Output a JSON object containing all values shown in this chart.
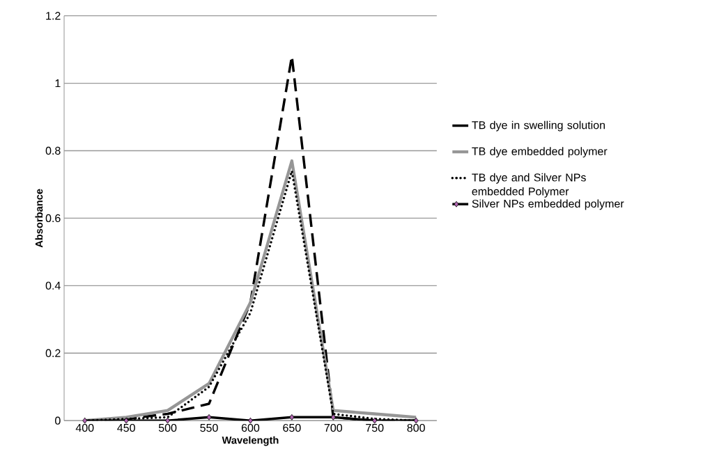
{
  "chart_data": {
    "type": "line",
    "xlabel": "Wavelength",
    "ylabel": "Absorbance",
    "categories": [
      "400",
      "450",
      "500",
      "550",
      "600",
      "650",
      "700",
      "750",
      "800"
    ],
    "series": [
      {
        "name": "TB dye in swelling solution",
        "color": "#000000",
        "line_style": "dashed",
        "marker": "none",
        "values": [
          0,
          0.005,
          0.02,
          0.05,
          0.35,
          1.08,
          0.01,
          0,
          0
        ]
      },
      {
        "name": "TB dye embedded polymer",
        "color": "#969696",
        "line_style": "solid",
        "marker": "none",
        "values": [
          0,
          0.01,
          0.03,
          0.11,
          0.35,
          0.77,
          0.03,
          0.02,
          0.01
        ]
      },
      {
        "name": "TB dye and Silver NPs embedded Polymer",
        "color": "#000000",
        "line_style": "dotted",
        "marker": "none",
        "values": [
          0,
          0.005,
          0.01,
          0.1,
          0.32,
          0.74,
          0.02,
          0.005,
          0
        ]
      },
      {
        "name": "Silver NPs embedded polymer",
        "color": "#000000",
        "line_style": "solid",
        "marker": "diamond",
        "values": [
          0,
          0,
          0,
          0.01,
          0,
          0.01,
          0.01,
          0,
          0
        ]
      }
    ],
    "ylim": [
      0,
      1.2
    ],
    "yticks": [
      0,
      0.2,
      0.4,
      0.6,
      0.8,
      1,
      1.2
    ],
    "grid": "y",
    "legend": "right"
  }
}
